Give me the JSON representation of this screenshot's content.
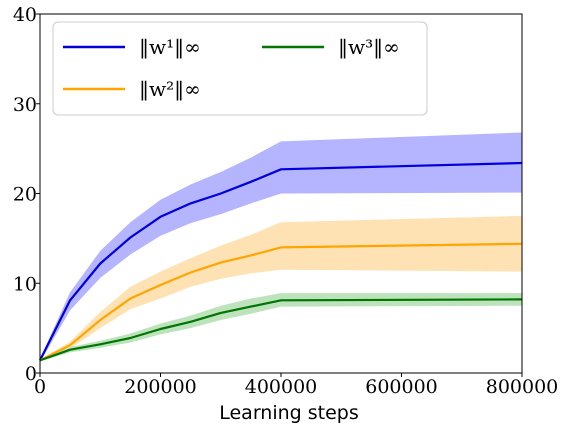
{
  "chart_data": {
    "type": "line",
    "title": "",
    "xlabel": "Learning steps",
    "ylabel": "",
    "xlim": [
      0,
      800000
    ],
    "ylim": [
      0,
      40
    ],
    "x_ticks": [
      0,
      200000,
      400000,
      600000,
      800000
    ],
    "x_tick_labels": [
      "0",
      "200000",
      "400000",
      "600000",
      "800000"
    ],
    "y_ticks": [
      0,
      10,
      20,
      30,
      40
    ],
    "y_tick_labels": [
      "0",
      "10",
      "20",
      "30",
      "40"
    ],
    "grid": false,
    "legend_position": "top-left",
    "x": [
      0,
      50000,
      100000,
      150000,
      200000,
      250000,
      300000,
      350000,
      400000,
      800000
    ],
    "series": [
      {
        "name": "‖w¹‖∞",
        "color": "#0000dd",
        "band_color": "#b4b4ff",
        "values": [
          1.4,
          8.1,
          12.2,
          15.1,
          17.4,
          18.9,
          20.0,
          21.3,
          22.7,
          23.4
        ],
        "lower": [
          1.2,
          7.0,
          10.6,
          13.2,
          15.3,
          16.7,
          17.7,
          18.9,
          20.0,
          20.1
        ],
        "upper": [
          1.6,
          9.0,
          13.6,
          16.8,
          19.3,
          21.0,
          22.4,
          24.0,
          25.8,
          26.8
        ]
      },
      {
        "name": "‖w²‖∞",
        "color": "#ffa500",
        "band_color": "#ffe2b4",
        "values": [
          1.4,
          3.1,
          5.9,
          8.3,
          9.8,
          11.2,
          12.3,
          13.1,
          14.0,
          14.4
        ],
        "lower": [
          1.3,
          2.7,
          5.0,
          7.1,
          8.3,
          9.6,
          10.5,
          11.1,
          11.5,
          11.3
        ],
        "upper": [
          1.5,
          3.5,
          6.8,
          9.6,
          11.3,
          12.8,
          14.2,
          15.4,
          16.8,
          17.5
        ]
      },
      {
        "name": "‖w³‖∞",
        "color": "#007500",
        "band_color": "#bde3bd",
        "values": [
          1.4,
          2.6,
          3.2,
          3.9,
          4.9,
          5.7,
          6.7,
          7.4,
          8.1,
          8.2
        ],
        "lower": [
          1.3,
          2.3,
          2.8,
          3.4,
          4.3,
          5.0,
          5.9,
          6.6,
          7.4,
          7.5
        ],
        "upper": [
          1.5,
          2.9,
          3.6,
          4.4,
          5.5,
          6.4,
          7.5,
          8.3,
          8.9,
          8.9
        ]
      }
    ]
  }
}
